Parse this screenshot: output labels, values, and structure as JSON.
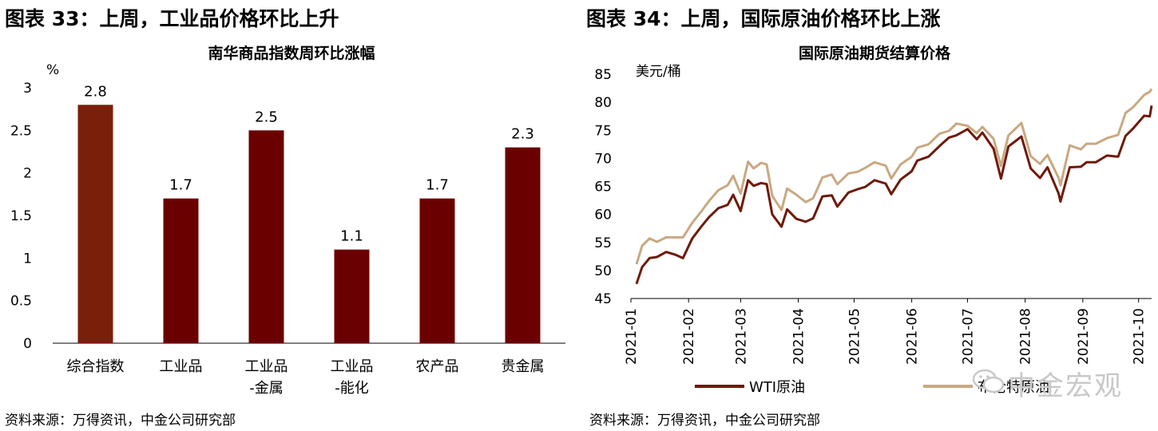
{
  "left": {
    "fig_title": "图表 33：上周，工业品价格环比上升",
    "source": "资料来源：万得资讯，中金公司研究部"
  },
  "right": {
    "fig_title": "图表 34：上周，国际原油价格环比上涨",
    "source": "资料来源：万得资讯，中金公司研究部",
    "watermark": "中金宏观"
  },
  "colors": {
    "highlight_bar": "#7a1f0a",
    "bar": "#6b0000",
    "wti": "#6e1a0a",
    "brent": "#c9a882"
  },
  "chart_data": [
    {
      "type": "bar",
      "title": "南华商品指数周环比涨幅",
      "ylabel": "%",
      "categories": [
        [
          "综合指数"
        ],
        [
          "工业品"
        ],
        [
          "工业品",
          "-金属"
        ],
        [
          "工业品",
          "-能化"
        ],
        [
          "农产品"
        ],
        [
          "贵金属"
        ]
      ],
      "values": [
        2.8,
        1.7,
        2.5,
        1.1,
        1.7,
        2.3
      ],
      "data_labels": [
        "2.8",
        "1.7",
        "2.5",
        "1.1",
        "1.7",
        "2.3"
      ],
      "ylim": [
        0,
        3
      ],
      "yticks": [
        0,
        0.5,
        1,
        1.5,
        2,
        2.5,
        3
      ],
      "ytick_labels": [
        "0",
        "0.5",
        "1",
        "1.5",
        "2",
        "2.5",
        "3"
      ],
      "grid": false
    },
    {
      "type": "line",
      "title": "国际原油期货结算价格",
      "ylabel": "美元/桶",
      "ylim": [
        45,
        85
      ],
      "yticks": [
        45,
        50,
        55,
        60,
        65,
        70,
        75,
        80,
        85
      ],
      "xlim": [
        "2021-01-01",
        "2021-10-08"
      ],
      "xticks": [
        "2021-01-01",
        "2021-02-01",
        "2021-03-01",
        "2021-04-01",
        "2021-05-01",
        "2021-06-01",
        "2021-07-01",
        "2021-08-01",
        "2021-09-01",
        "2021-10-01"
      ],
      "xtick_labels": [
        "2021-01",
        "2021-02",
        "2021-03",
        "2021-04",
        "2021-05",
        "2021-06",
        "2021-07",
        "2021-08",
        "2021-09",
        "2021-10"
      ],
      "legend_position": "bottom",
      "grid": false,
      "series": [
        {
          "name": "WTI原油",
          "color": "#6e1a0a",
          "points": [
            [
              "2021-01-04",
              47.6
            ],
            [
              "2021-01-07",
              50.6
            ],
            [
              "2021-01-11",
              52.2
            ],
            [
              "2021-01-15",
              52.4
            ],
            [
              "2021-01-20",
              53.3
            ],
            [
              "2021-01-25",
              52.8
            ],
            [
              "2021-01-29",
              52.2
            ],
            [
              "2021-02-03",
              55.7
            ],
            [
              "2021-02-08",
              57.9
            ],
            [
              "2021-02-12",
              59.5
            ],
            [
              "2021-02-17",
              61.1
            ],
            [
              "2021-02-22",
              61.7
            ],
            [
              "2021-02-25",
              63.5
            ],
            [
              "2021-03-01",
              60.6
            ],
            [
              "2021-03-05",
              66.1
            ],
            [
              "2021-03-08",
              65.1
            ],
            [
              "2021-03-12",
              65.6
            ],
            [
              "2021-03-15",
              65.4
            ],
            [
              "2021-03-18",
              60.0
            ],
            [
              "2021-03-23",
              57.8
            ],
            [
              "2021-03-26",
              60.9
            ],
            [
              "2021-03-31",
              59.2
            ],
            [
              "2021-04-05",
              58.7
            ],
            [
              "2021-04-09",
              59.3
            ],
            [
              "2021-04-14",
              63.2
            ],
            [
              "2021-04-19",
              63.4
            ],
            [
              "2021-04-22",
              61.4
            ],
            [
              "2021-04-28",
              63.9
            ],
            [
              "2021-05-03",
              64.5
            ],
            [
              "2021-05-07",
              64.9
            ],
            [
              "2021-05-12",
              66.1
            ],
            [
              "2021-05-18",
              65.5
            ],
            [
              "2021-05-21",
              63.6
            ],
            [
              "2021-05-26",
              66.2
            ],
            [
              "2021-06-01",
              67.7
            ],
            [
              "2021-06-04",
              69.6
            ],
            [
              "2021-06-10",
              70.3
            ],
            [
              "2021-06-16",
              72.2
            ],
            [
              "2021-06-21",
              73.7
            ],
            [
              "2021-06-25",
              74.1
            ],
            [
              "2021-07-01",
              75.2
            ],
            [
              "2021-07-06",
              73.4
            ],
            [
              "2021-07-09",
              74.6
            ],
            [
              "2021-07-15",
              71.7
            ],
            [
              "2021-07-19",
              66.4
            ],
            [
              "2021-07-23",
              72.1
            ],
            [
              "2021-07-30",
              73.9
            ],
            [
              "2021-08-04",
              68.2
            ],
            [
              "2021-08-09",
              66.5
            ],
            [
              "2021-08-13",
              68.4
            ],
            [
              "2021-08-19",
              63.7
            ],
            [
              "2021-08-20",
              62.3
            ],
            [
              "2021-08-25",
              68.4
            ],
            [
              "2021-08-31",
              68.5
            ],
            [
              "2021-09-03",
              69.3
            ],
            [
              "2021-09-08",
              69.3
            ],
            [
              "2021-09-14",
              70.5
            ],
            [
              "2021-09-20",
              70.3
            ],
            [
              "2021-09-24",
              74.0
            ],
            [
              "2021-09-28",
              75.3
            ],
            [
              "2021-10-04",
              77.6
            ],
            [
              "2021-10-07",
              77.5
            ],
            [
              "2021-10-08",
              79.4
            ]
          ]
        },
        {
          "name": "布伦特原油",
          "color": "#c9a882",
          "points": [
            [
              "2021-01-04",
              51.1
            ],
            [
              "2021-01-07",
              54.4
            ],
            [
              "2021-01-11",
              55.7
            ],
            [
              "2021-01-15",
              55.1
            ],
            [
              "2021-01-20",
              55.9
            ],
            [
              "2021-01-25",
              55.9
            ],
            [
              "2021-01-29",
              55.9
            ],
            [
              "2021-02-03",
              58.5
            ],
            [
              "2021-02-08",
              60.6
            ],
            [
              "2021-02-12",
              62.4
            ],
            [
              "2021-02-17",
              64.3
            ],
            [
              "2021-02-22",
              65.2
            ],
            [
              "2021-02-25",
              66.9
            ],
            [
              "2021-03-01",
              63.7
            ],
            [
              "2021-03-05",
              69.4
            ],
            [
              "2021-03-08",
              68.2
            ],
            [
              "2021-03-12",
              69.2
            ],
            [
              "2021-03-15",
              68.9
            ],
            [
              "2021-03-18",
              63.3
            ],
            [
              "2021-03-23",
              60.8
            ],
            [
              "2021-03-26",
              64.6
            ],
            [
              "2021-03-31",
              63.5
            ],
            [
              "2021-04-05",
              62.2
            ],
            [
              "2021-04-09",
              62.9
            ],
            [
              "2021-04-14",
              66.6
            ],
            [
              "2021-04-19",
              67.1
            ],
            [
              "2021-04-22",
              65.4
            ],
            [
              "2021-04-28",
              67.3
            ],
            [
              "2021-05-03",
              67.6
            ],
            [
              "2021-05-07",
              68.3
            ],
            [
              "2021-05-12",
              69.3
            ],
            [
              "2021-05-18",
              68.7
            ],
            [
              "2021-05-21",
              66.4
            ],
            [
              "2021-05-26",
              68.9
            ],
            [
              "2021-06-01",
              70.3
            ],
            [
              "2021-06-04",
              71.9
            ],
            [
              "2021-06-10",
              72.5
            ],
            [
              "2021-06-16",
              74.4
            ],
            [
              "2021-06-21",
              74.9
            ],
            [
              "2021-06-25",
              76.2
            ],
            [
              "2021-07-01",
              75.8
            ],
            [
              "2021-07-06",
              74.5
            ],
            [
              "2021-07-09",
              75.6
            ],
            [
              "2021-07-15",
              73.5
            ],
            [
              "2021-07-19",
              68.6
            ],
            [
              "2021-07-23",
              74.1
            ],
            [
              "2021-07-30",
              76.3
            ],
            [
              "2021-08-04",
              70.4
            ],
            [
              "2021-08-09",
              69.0
            ],
            [
              "2021-08-13",
              70.6
            ],
            [
              "2021-08-19",
              66.5
            ],
            [
              "2021-08-20",
              65.2
            ],
            [
              "2021-08-25",
              72.3
            ],
            [
              "2021-08-31",
              71.6
            ],
            [
              "2021-09-03",
              72.6
            ],
            [
              "2021-09-08",
              72.6
            ],
            [
              "2021-09-14",
              73.6
            ],
            [
              "2021-09-20",
              74.2
            ],
            [
              "2021-09-24",
              78.1
            ],
            [
              "2021-09-28",
              79.1
            ],
            [
              "2021-10-04",
              81.3
            ],
            [
              "2021-10-07",
              81.9
            ],
            [
              "2021-10-08",
              82.4
            ]
          ]
        }
      ]
    }
  ]
}
